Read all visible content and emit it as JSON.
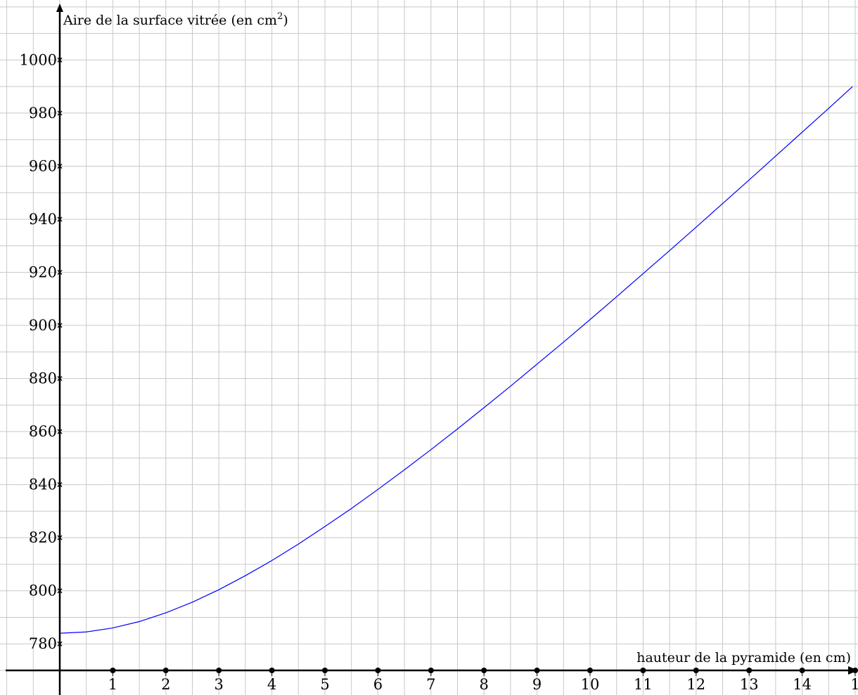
{
  "chart_data": {
    "type": "line",
    "title": "",
    "ylabel": "Aire de la surface vitrée (en cm",
    "ylabel_exponent": "2",
    "ylabel_close": ")",
    "xlabel": "hauteur de la pyramide (en cm)",
    "xlim": [
      -1,
      15
    ],
    "ylim": [
      770,
      1010
    ],
    "x_ticks": [
      "1",
      "2",
      "3",
      "4",
      "5",
      "6",
      "7",
      "8",
      "9",
      "10",
      "11",
      "12",
      "13",
      "14",
      "1"
    ],
    "y_ticks": [
      "780",
      "800",
      "820",
      "840",
      "860",
      "880",
      "900",
      "920",
      "940",
      "960",
      "980",
      "1000"
    ],
    "grid": true,
    "series": [
      {
        "color": "#0000ff",
        "x": [
          0,
          0.5,
          1,
          1.5,
          2,
          2.5,
          3,
          3.5,
          4,
          4.5,
          5,
          5.5,
          6,
          6.5,
          7,
          7.5,
          8,
          8.5,
          9,
          9.5,
          10,
          10.5,
          11,
          11.5,
          12,
          12.5,
          13,
          13.5,
          14,
          14.5,
          14.95
        ],
        "y": [
          784.0,
          784.5,
          786.0,
          788.4,
          791.7,
          795.7,
          800.4,
          805.7,
          811.4,
          817.6,
          824.2,
          831.0,
          838.2,
          845.6,
          853.2,
          861.0,
          869.0,
          877.1,
          885.4,
          893.7,
          902.2,
          910.8,
          919.5,
          928.2,
          937.0,
          945.9,
          954.8,
          963.8,
          972.8,
          981.8,
          990.0
        ]
      }
    ]
  }
}
